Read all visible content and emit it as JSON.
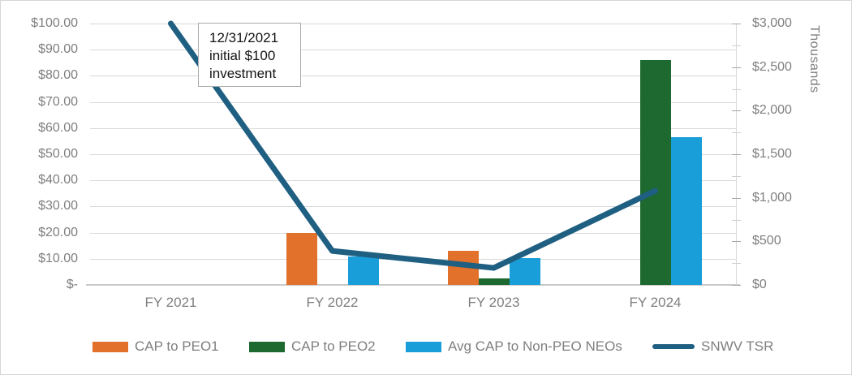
{
  "chart_data": {
    "type": "combo-bar-line",
    "categories": [
      "FY 2021",
      "FY 2022",
      "FY 2023",
      "FY 2024"
    ],
    "bar_series": [
      {
        "name": "CAP to PEO1",
        "color": "#e2712c",
        "axis": "right",
        "values_thousands": [
          null,
          600,
          390,
          null
        ]
      },
      {
        "name": "CAP to PEO2",
        "color": "#1d6930",
        "axis": "right",
        "values_thousands": [
          null,
          null,
          70,
          2580
        ]
      },
      {
        "name": "Avg CAP to Non-PEO NEOs",
        "color": "#1a9ed9",
        "axis": "right",
        "values_thousands": [
          null,
          330,
          310,
          1700
        ]
      }
    ],
    "line_series": {
      "name": "SNWV TSR",
      "color": "#1f5f82",
      "axis": "left",
      "values_dollars": [
        100,
        13,
        6.5,
        36
      ]
    },
    "left_axis": {
      "min": 0,
      "max": 100,
      "step": 10,
      "tick_labels": [
        "$-",
        "$10.00",
        "$20.00",
        "$30.00",
        "$40.00",
        "$50.00",
        "$60.00",
        "$70.00",
        "$80.00",
        "$90.00",
        "$100.00"
      ]
    },
    "right_axis": {
      "min": 0,
      "max": 3000,
      "step": 500,
      "minor_step": 250,
      "title": "Thousands",
      "tick_labels": [
        "$0",
        "$500",
        "$1,000",
        "$1,500",
        "$2,000",
        "$2,500",
        "$3,000"
      ]
    },
    "grid": "horizontal",
    "legend_position": "bottom"
  },
  "annotation": {
    "line1": "12/31/2021",
    "line2": "initial $100",
    "line3": "investment"
  },
  "colors": {
    "gridline": "#d9d9d9",
    "axis_text": "#7f7f7f",
    "annotation_border": "#ababab"
  }
}
